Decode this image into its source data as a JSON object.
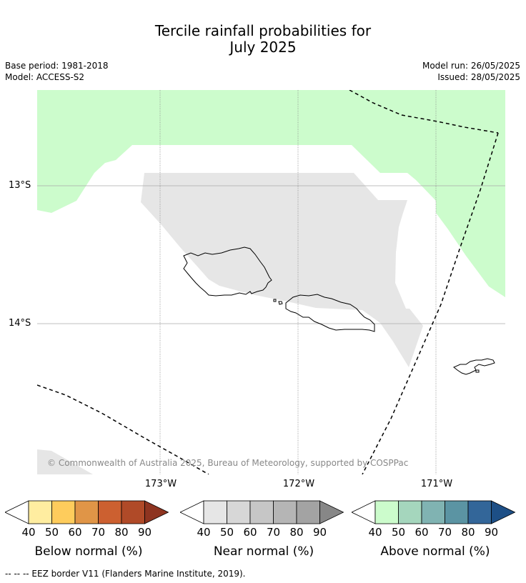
{
  "title_line1": "Tercile rainfall probabilities for",
  "title_line2": "July 2025",
  "base_period": "Base period: 1981-2018",
  "model": "Model: ACCESS-S2",
  "model_run": "Model run: 26/05/2025",
  "issued": "Issued: 28/05/2025",
  "copyright": "© Commonwealth of Australia 2025, Bureau of Meteorology, supported by COSPPac",
  "lon_labels": [
    "173°W",
    "172°W",
    "171°W"
  ],
  "lat_labels": [
    "13°S",
    "14°S"
  ],
  "footer": "--  --  -- EEZ border V11 (Flanders Marine Institute, 2019).",
  "colorbars": [
    {
      "title": "Below normal (%)",
      "ticks": [
        "40",
        "50",
        "60",
        "70",
        "80",
        "90"
      ],
      "colors": [
        "#ffeda0",
        "#fecc5c",
        "#e09547",
        "#cc6030",
        "#b04a28",
        "#8e3420"
      ]
    },
    {
      "title": "Near normal (%)",
      "ticks": [
        "40",
        "50",
        "60",
        "70",
        "80",
        "90"
      ],
      "colors": [
        "#e6e6e6",
        "#d7d7d7",
        "#c6c6c6",
        "#b5b5b5",
        "#a3a3a3",
        "#878787"
      ]
    },
    {
      "title": "Above normal (%)",
      "ticks": [
        "40",
        "50",
        "60",
        "70",
        "80",
        "90"
      ],
      "colors": [
        "#ccfccc",
        "#a5d6bd",
        "#80b3b2",
        "#5b94a3",
        "#336699",
        "#1d4f86"
      ]
    }
  ],
  "colors": {
    "above_40": "#ccfccc",
    "near_40": "#e6e6e6"
  }
}
